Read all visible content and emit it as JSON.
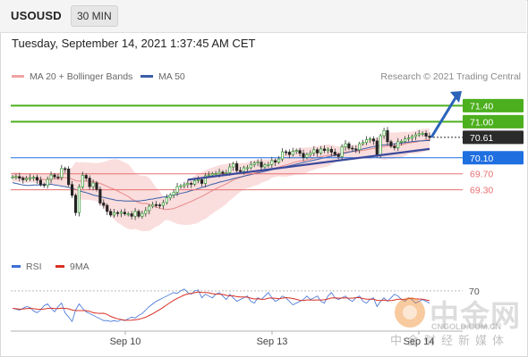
{
  "header": {
    "symbol": "USOUSD",
    "timeframe": "30 MIN"
  },
  "datetime": "Tuesday, September 14, 2021 1:37:45 AM CET",
  "legend": {
    "ma20_label": "MA 20 + Bollinger Bands",
    "ma50_label": "MA 50",
    "rsi_label": "RSI",
    "ma9_label": "9MA"
  },
  "credit": "Research © 2021 Trading Central",
  "colors": {
    "bullish": "#2e9b2e",
    "bearish": "#d93025",
    "neutral_candle": "#222222",
    "bollinger": "#f7c7c7",
    "ma20": "#e88a8a",
    "ma50": "#3b5fa8",
    "resistance": "#4caf1e",
    "current": "#2b2b2b",
    "pivot": "#1f6fe0",
    "support": "#e87070",
    "rsi": "#3b6fd6",
    "rsi_ma": "#d93025",
    "arrow": "#2a63b8",
    "trendline": "#3a4a9c"
  },
  "chart_data": {
    "type": "candlestick",
    "instrument": "USOUSD",
    "timeframe": "30 MIN",
    "x_ticks": [
      "Sep 10",
      "Sep 13",
      "Sep 14"
    ],
    "y_range": [
      68.2,
      71.9
    ],
    "levels": [
      {
        "value": 71.4,
        "label": "71.40",
        "kind": "resistance"
      },
      {
        "value": 71.0,
        "label": "71.00",
        "kind": "resistance"
      },
      {
        "value": 70.61,
        "label": "70.61",
        "kind": "current"
      },
      {
        "value": 70.1,
        "label": "70.10",
        "kind": "pivot"
      },
      {
        "value": 69.7,
        "label": "69.70",
        "kind": "support"
      },
      {
        "value": 69.3,
        "label": "69.30",
        "kind": "support"
      }
    ],
    "closes": [
      69.62,
      69.63,
      69.59,
      69.55,
      69.58,
      69.6,
      69.61,
      69.54,
      69.43,
      69.41,
      69.56,
      69.67,
      69.62,
      69.61,
      69.83,
      69.82,
      69.43,
      69.16,
      68.73,
      69.37,
      69.66,
      69.59,
      69.38,
      69.47,
      69.31,
      68.97,
      68.91,
      68.76,
      68.67,
      68.73,
      68.71,
      68.74,
      68.7,
      68.7,
      68.64,
      68.76,
      68.64,
      68.71,
      68.78,
      68.89,
      68.93,
      68.92,
      68.91,
      68.98,
      69.1,
      69.17,
      69.24,
      69.38,
      69.4,
      69.43,
      69.46,
      69.44,
      69.53,
      69.55,
      69.46,
      69.65,
      69.67,
      69.7,
      69.7,
      69.74,
      69.71,
      69.73,
      69.87,
      69.95,
      69.78,
      69.76,
      69.85,
      69.85,
      69.93,
      69.97,
      69.99,
      69.87,
      69.92,
      69.93,
      70.03,
      69.99,
      70.07,
      70.25,
      70.24,
      70.18,
      70.26,
      70.28,
      70.21,
      70.11,
      70.18,
      70.22,
      70.3,
      70.22,
      70.32,
      70.28,
      70.31,
      70.24,
      70.18,
      70.13,
      70.37,
      70.45,
      70.34,
      70.32,
      70.3,
      70.45,
      70.48,
      70.55,
      70.57,
      70.52,
      70.16,
      70.65,
      70.78,
      70.5,
      70.39,
      70.35,
      70.5,
      70.51,
      70.57,
      70.59,
      70.63,
      70.67,
      70.7,
      70.71,
      70.64,
      70.61
    ],
    "ma50": [
      69.48,
      69.46,
      69.44,
      69.42,
      69.41,
      69.41,
      69.42,
      69.42,
      69.42,
      69.43,
      69.44,
      69.44,
      69.42,
      69.41,
      69.39,
      69.38,
      69.36,
      69.33,
      69.31,
      69.28,
      69.25,
      69.23,
      69.2,
      69.17,
      69.15,
      69.13,
      69.11,
      69.09,
      69.07,
      69.05,
      69.03,
      69.03,
      69.02,
      69.02,
      69.02,
      69.02,
      69.02,
      69.03,
      69.04,
      69.06,
      69.07,
      69.09,
      69.1,
      69.12,
      69.13,
      69.15,
      69.17,
      69.19,
      69.21,
      69.23,
      69.25,
      69.28,
      69.3,
      69.33,
      69.36,
      69.38,
      69.41,
      69.44,
      69.46,
      69.49,
      69.51,
      69.53,
      69.55,
      69.58,
      69.6,
      69.62,
      69.64,
      69.66,
      69.68,
      69.7,
      69.72,
      69.74,
      69.76,
      69.78,
      69.8,
      69.82,
      69.84,
      69.86,
      69.88,
      69.9,
      69.92,
      69.94,
      69.96,
      69.98,
      70.0,
      70.02,
      70.04,
      70.06,
      70.08,
      70.1,
      70.12,
      70.14,
      70.16,
      70.18,
      70.2,
      70.22,
      70.24,
      70.26,
      70.28,
      70.3,
      70.32,
      70.34,
      70.36,
      70.38,
      70.39,
      70.41,
      70.42,
      70.43,
      70.44,
      70.45,
      70.46,
      70.47,
      70.48,
      70.49,
      70.5,
      70.51,
      70.52,
      70.52,
      70.53,
      70.53
    ],
    "rsi": [
      50,
      49,
      48,
      50,
      52,
      51,
      47,
      45,
      48,
      53,
      55,
      50,
      46,
      52,
      56,
      45,
      40,
      35,
      48,
      55,
      50,
      46,
      44,
      42,
      40,
      38,
      36,
      36,
      35,
      36,
      35,
      37,
      36,
      38,
      40,
      39,
      42,
      44,
      48,
      52,
      55,
      58,
      60,
      62,
      64,
      66,
      68,
      67,
      70,
      72,
      68,
      66,
      70,
      71,
      62,
      66,
      64,
      62,
      66,
      68,
      64,
      60,
      66,
      62,
      58,
      60,
      62,
      64,
      58,
      56,
      62,
      60,
      64,
      68,
      62,
      58,
      60,
      64,
      62,
      58,
      54,
      56,
      58,
      60,
      64,
      60,
      62,
      64,
      58,
      56,
      64,
      68,
      62,
      60,
      62,
      64,
      60,
      58,
      62,
      64,
      58,
      56,
      60,
      62,
      52,
      58,
      62,
      58,
      62,
      66,
      64,
      60,
      58,
      62,
      60,
      56,
      58,
      60,
      58,
      56
    ],
    "rsi_level": 70
  }
}
